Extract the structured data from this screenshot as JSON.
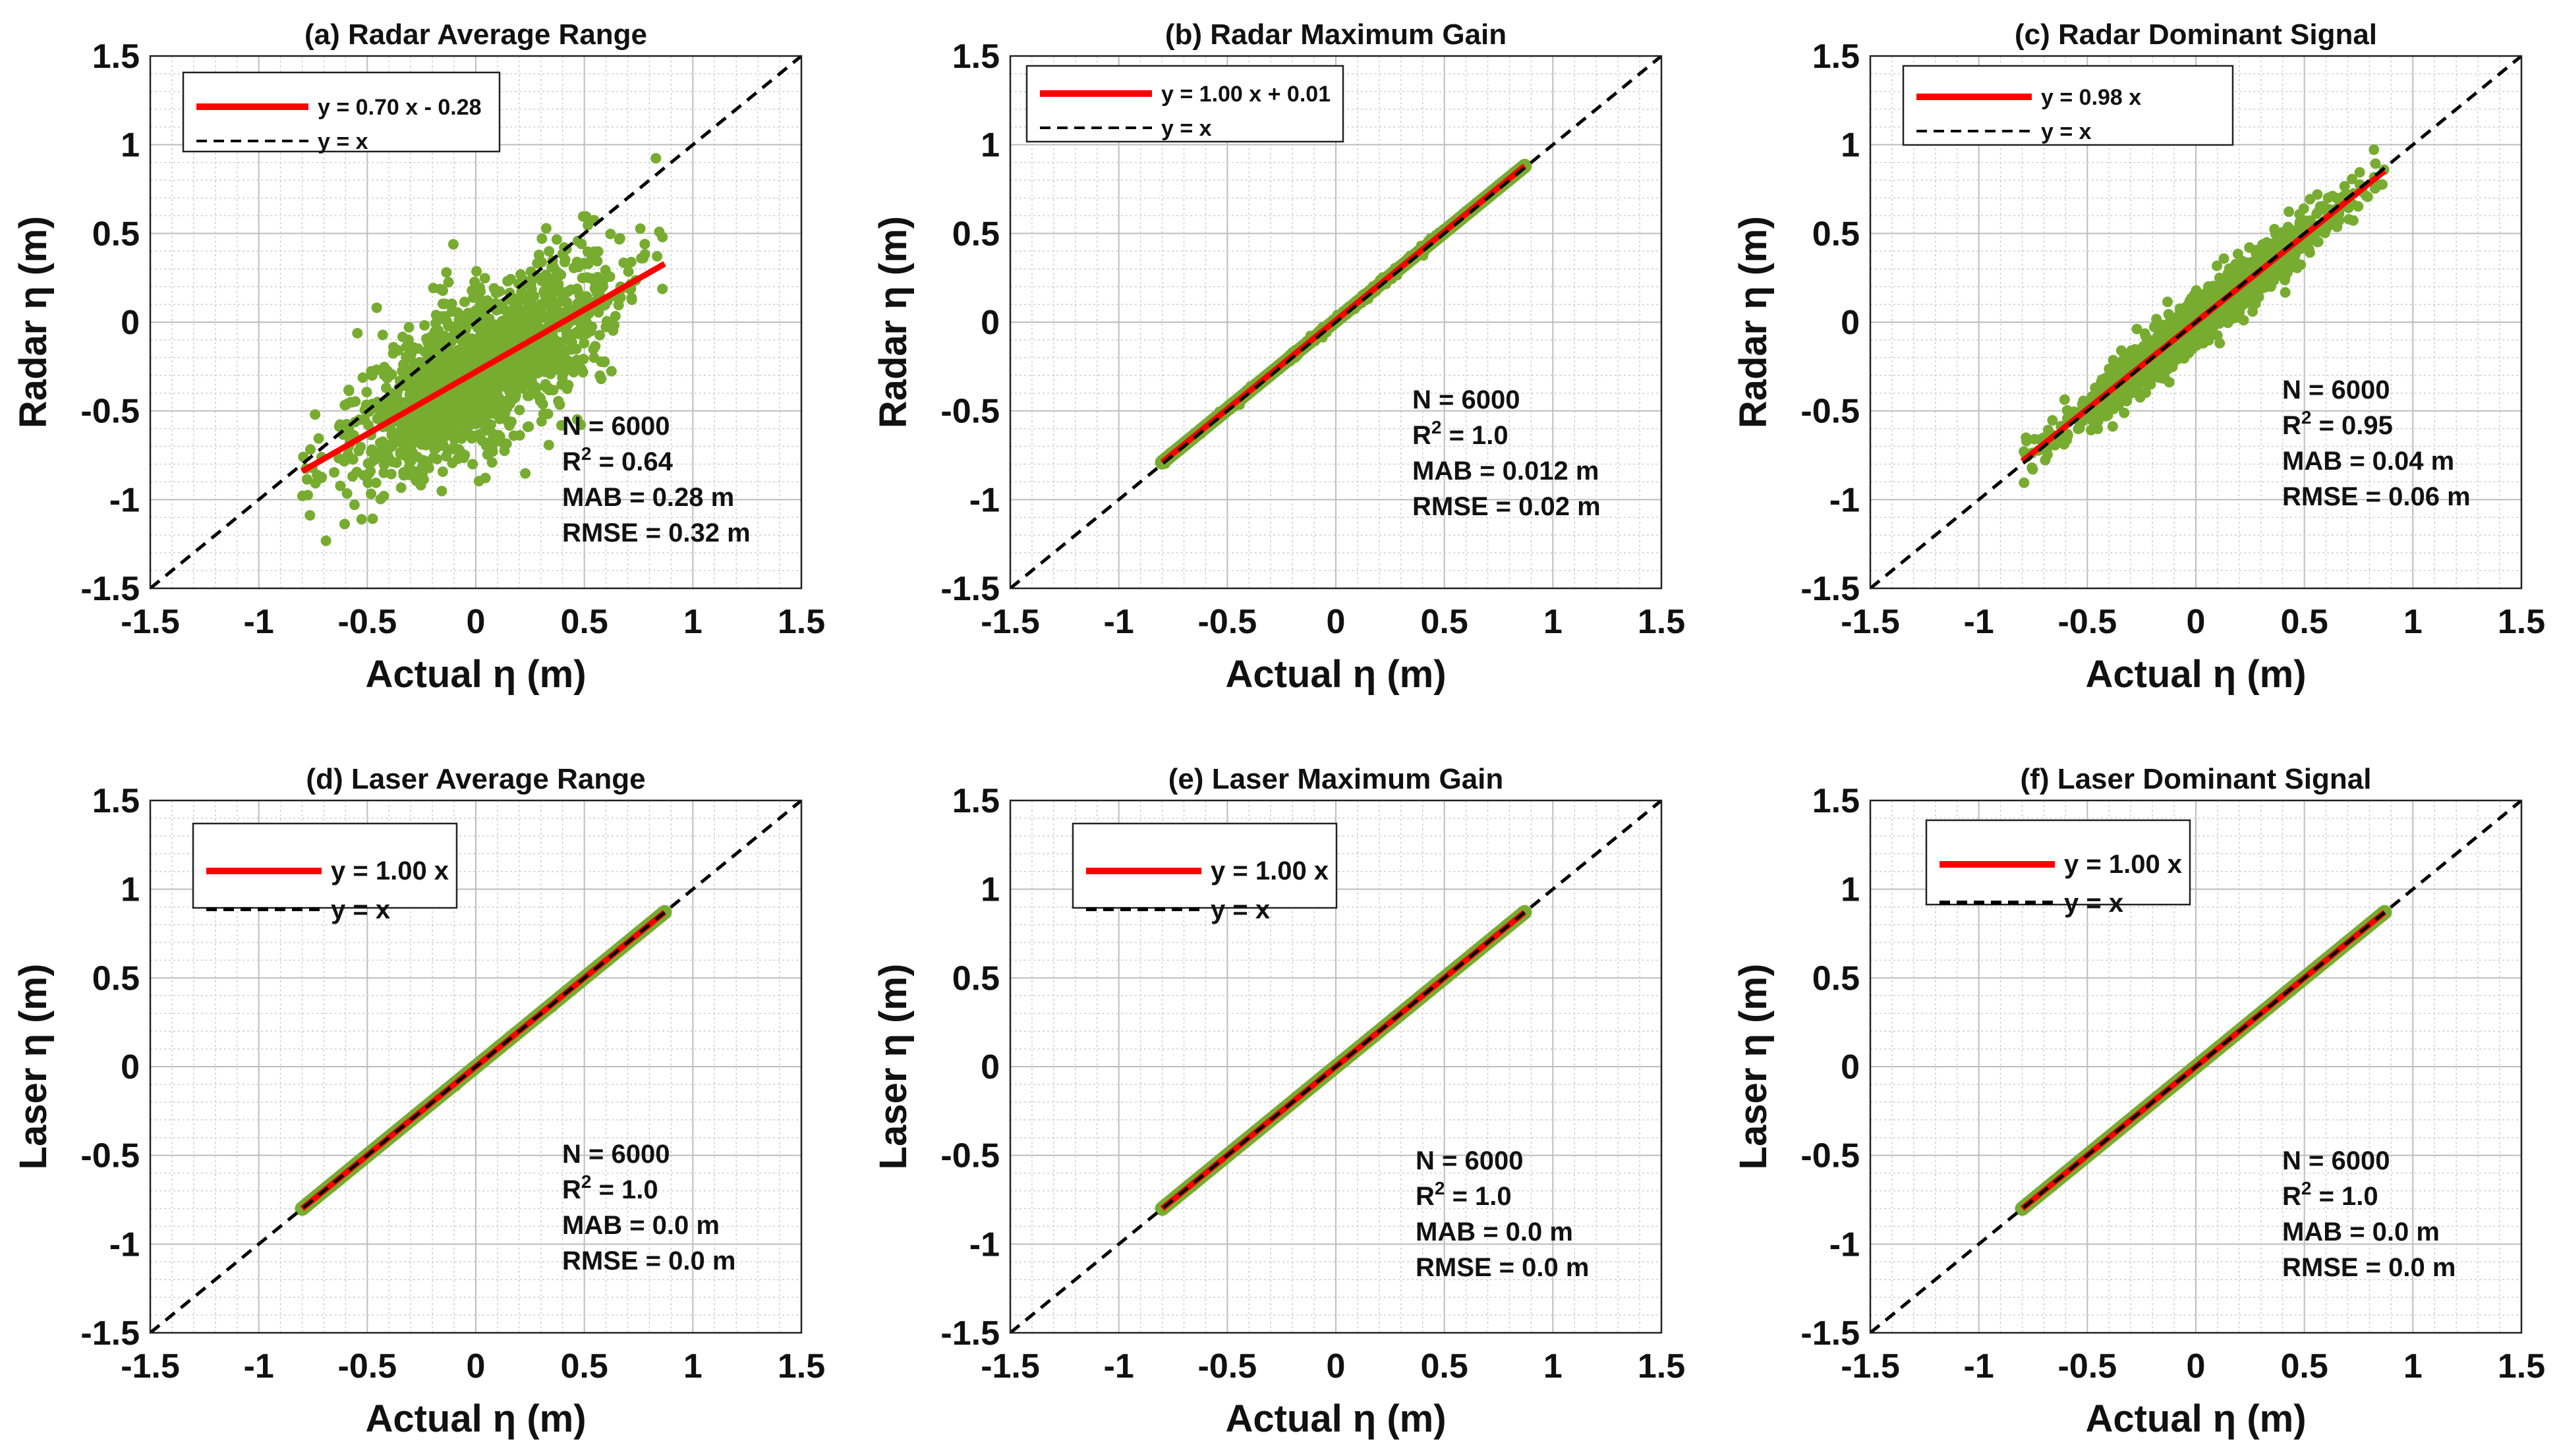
{
  "colors": {
    "scatter": "#77ac30",
    "fit_line": "#ff0000",
    "identity_line": "#000000",
    "grid_minor": "#cfcfcf",
    "grid_major": "#bdbdbd"
  },
  "chart_data": [
    {
      "type": "scatter",
      "title": "(a) Radar Average Range",
      "xlabel": "Actual η (m)",
      "ylabel": "Radar η (m)",
      "xlim": [
        -1.5,
        1.5
      ],
      "ylim": [
        -1.5,
        1.5
      ],
      "xticks": [
        "-1.5",
        "-1",
        "-0.5",
        "0",
        "0.5",
        "1",
        "1.5"
      ],
      "yticks": [
        "-1.5",
        "-1",
        "-0.5",
        "0",
        "0.5",
        "1",
        "1.5"
      ],
      "grid": true,
      "legend_position": "top-left",
      "legend": [
        "y = 0.70 x  - 0.28",
        "y = x"
      ],
      "fit": {
        "slope": 0.7,
        "intercept": -0.28
      },
      "x_range": [
        -0.8,
        0.87
      ],
      "scatter_spread": 0.22,
      "stats": [
        "N = 6000",
        "R² = 0.64",
        "MAB = 0.28 m",
        "RMSE = 0.32 m"
      ],
      "n_points": 6000,
      "r2": 0.64,
      "mab_m": 0.28,
      "rmse_m": 0.32
    },
    {
      "type": "scatter",
      "title": "(b) Radar Maximum Gain",
      "xlabel": "Actual η (m)",
      "ylabel": "Radar η (m)",
      "xlim": [
        -1.5,
        1.5
      ],
      "ylim": [
        -1.5,
        1.5
      ],
      "xticks": [
        "-1.5",
        "-1",
        "-0.5",
        "0",
        "0.5",
        "1",
        "1.5"
      ],
      "yticks": [
        "-1.5",
        "-1",
        "-0.5",
        "0",
        "0.5",
        "1",
        "1.5"
      ],
      "grid": true,
      "legend_position": "top-left",
      "legend": [
        "y = 1.00 x + 0.01",
        "y = x"
      ],
      "fit": {
        "slope": 1.0,
        "intercept": 0.01
      },
      "x_range": [
        -0.8,
        0.87
      ],
      "scatter_spread": 0.012,
      "stats": [
        "N = 6000",
        "R² = 1.0",
        "MAB =  0.012 m",
        "RMSE = 0.02 m"
      ],
      "n_points": 6000,
      "r2": 1.0,
      "mab_m": 0.012,
      "rmse_m": 0.02
    },
    {
      "type": "scatter",
      "title": "(c) Radar Dominant Signal",
      "xlabel": "Actual η (m)",
      "ylabel": "Radar η (m)",
      "xlim": [
        -1.5,
        1.5
      ],
      "ylim": [
        -1.5,
        1.5
      ],
      "xticks": [
        "-1.5",
        "-1",
        "-0.5",
        "0",
        "0.5",
        "1",
        "1.5"
      ],
      "yticks": [
        "-1.5",
        "-1",
        "-0.5",
        "0",
        "0.5",
        "1",
        "1.5"
      ],
      "grid": true,
      "legend_position": "top-left",
      "legend": [
        "y = 0.98 x",
        "y = x"
      ],
      "fit": {
        "slope": 0.98,
        "intercept": 0.0
      },
      "x_range": [
        -0.8,
        0.87
      ],
      "scatter_spread": 0.07,
      "stats": [
        "N = 6000",
        "R² = 0.95",
        "MAB = 0.04 m",
        "RMSE = 0.06 m"
      ],
      "n_points": 6000,
      "r2": 0.95,
      "mab_m": 0.04,
      "rmse_m": 0.06
    },
    {
      "type": "scatter",
      "title": "(d) Laser Average Range",
      "xlabel": "Actual η (m)",
      "ylabel": "Laser η (m)",
      "xlim": [
        -1.5,
        1.5
      ],
      "ylim": [
        -1.5,
        1.5
      ],
      "xticks": [
        "-1.5",
        "-1",
        "-0.5",
        "0",
        "0.5",
        "1",
        "1.5"
      ],
      "yticks": [
        "-1.5",
        "-1",
        "-0.5",
        "0",
        "0.5",
        "1",
        "1.5"
      ],
      "grid": true,
      "legend_position": "top-left",
      "legend": [
        "y = 1.00 x",
        "y = x"
      ],
      "fit": {
        "slope": 1.0,
        "intercept": 0.0
      },
      "x_range": [
        -0.8,
        0.87
      ],
      "scatter_spread": 0.008,
      "stats": [
        "N = 6000",
        "R² = 1.0",
        "MAB = 0.0 m",
        "RMSE = 0.0 m"
      ],
      "n_points": 6000,
      "r2": 1.0,
      "mab_m": 0.0,
      "rmse_m": 0.0
    },
    {
      "type": "scatter",
      "title": "(e) Laser Maximum Gain",
      "xlabel": "Actual η (m)",
      "ylabel": "Laser η (m)",
      "xlim": [
        -1.5,
        1.5
      ],
      "ylim": [
        -1.5,
        1.5
      ],
      "xticks": [
        "-1.5",
        "-1",
        "-0.5",
        "0",
        "0.5",
        "1",
        "1.5"
      ],
      "yticks": [
        "-1.5",
        "-1",
        "-0.5",
        "0",
        "0.5",
        "1",
        "1.5"
      ],
      "grid": true,
      "legend_position": "top-left",
      "legend": [
        "y = 1.00 x",
        "y = x"
      ],
      "fit": {
        "slope": 1.0,
        "intercept": 0.0
      },
      "x_range": [
        -0.8,
        0.87
      ],
      "scatter_spread": 0.004,
      "stats": [
        "N = 6000",
        "R² = 1.0",
        "MAB = 0.0 m",
        "RMSE = 0.0 m"
      ],
      "n_points": 6000,
      "r2": 1.0,
      "mab_m": 0.0,
      "rmse_m": 0.0
    },
    {
      "type": "scatter",
      "title": "(f) Laser Dominant Signal",
      "xlabel": "Actual η (m)",
      "ylabel": "Laser η (m)",
      "xlim": [
        -1.5,
        1.5
      ],
      "ylim": [
        -1.5,
        1.5
      ],
      "xticks": [
        "-1.5",
        "-1",
        "-0.5",
        "0",
        "0.5",
        "1",
        "1.5"
      ],
      "yticks": [
        "-1.5",
        "-1",
        "-0.5",
        "0",
        "0.5",
        "1",
        "1.5"
      ],
      "grid": true,
      "legend_position": "top-left",
      "legend": [
        "y = 1.00 x",
        "y = x"
      ],
      "fit": {
        "slope": 1.0,
        "intercept": 0.0
      },
      "x_range": [
        -0.8,
        0.87
      ],
      "scatter_spread": 0.004,
      "stats": [
        "N = 6000",
        "R² = 1.0",
        "MAB = 0.0 m",
        "RMSE = 0.0 m"
      ],
      "n_points": 6000,
      "r2": 1.0,
      "mab_m": 0.0,
      "rmse_m": 0.0
    }
  ]
}
